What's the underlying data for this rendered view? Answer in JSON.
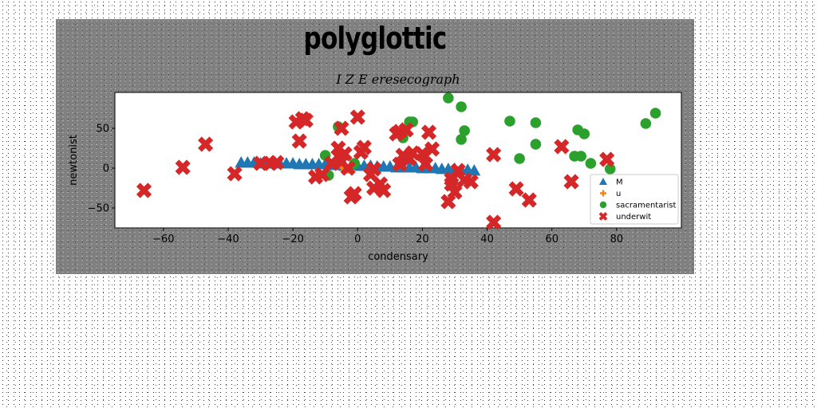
{
  "chart_data": {
    "type": "scatter",
    "suptitle": "polyglottic",
    "title": "I Z E eresecograph",
    "xlabel": "condensary",
    "ylabel": "newtonist",
    "xlim": [
      -75,
      100
    ],
    "ylim": [
      -75,
      95
    ],
    "xticks": [
      -60,
      -40,
      -20,
      0,
      20,
      40,
      60,
      80
    ],
    "yticks": [
      -50,
      0,
      50
    ],
    "grid": false,
    "legend_position": "bottom-right",
    "series": [
      {
        "name": "M",
        "marker": "triangle",
        "color": "#1f77b4",
        "x": [
          -36,
          -34,
          -32,
          -30,
          -28,
          -26,
          -24,
          -22,
          -20,
          -18,
          -16,
          -14,
          -12,
          -10,
          -8,
          -6,
          -4,
          -2,
          0,
          2,
          4,
          6,
          8,
          10,
          12,
          14,
          16,
          18,
          20,
          22,
          24,
          26,
          28,
          30,
          32,
          34,
          36
        ],
        "y": [
          7,
          7,
          7,
          6,
          6,
          6,
          6,
          6,
          6,
          5,
          5,
          5,
          5,
          5,
          4,
          4,
          3,
          3,
          3,
          3,
          3,
          2,
          2,
          2,
          1,
          1,
          1,
          1,
          0,
          0,
          0,
          -1,
          -1,
          -1,
          -2,
          -2,
          -3
        ]
      },
      {
        "name": "u",
        "marker": "plus",
        "color": "#ff7f0e",
        "x": [
          -5,
          -4,
          -3,
          -2
        ],
        "y": [
          1,
          -1,
          -2,
          -3
        ]
      },
      {
        "name": "sacramentarist",
        "marker": "circle",
        "color": "#2ca02c",
        "x": [
          28,
          32,
          33,
          32,
          16,
          17,
          14,
          -6,
          -10,
          -9,
          -1,
          47,
          55,
          55,
          50,
          68,
          70,
          69,
          72,
          67,
          78,
          89,
          92
        ],
        "y": [
          88,
          77,
          47,
          36,
          58,
          58,
          38,
          52,
          16,
          -9,
          6,
          59,
          57,
          30,
          12,
          48,
          43,
          15,
          6,
          15,
          -1,
          56,
          69
        ]
      },
      {
        "name": "underwit",
        "marker": "x",
        "color": "#d62728",
        "x": [
          -66,
          -54,
          -47,
          -38,
          -30,
          -27,
          -25,
          -19,
          -17,
          -16,
          -18,
          -13,
          -11,
          -6,
          -5,
          -5,
          -4,
          -6,
          -2,
          -8,
          -3,
          0,
          1,
          2,
          5,
          4,
          -1,
          5,
          7,
          8,
          12,
          13,
          15,
          14,
          13,
          17,
          16,
          20,
          21,
          22,
          23,
          29,
          29,
          30,
          28,
          31,
          33,
          35,
          42,
          42,
          49,
          53,
          63,
          66,
          77
        ],
        "y": [
          -28,
          1,
          30,
          -7,
          6,
          6,
          7,
          58,
          62,
          60,
          34,
          -11,
          -8,
          25,
          50,
          8,
          18,
          15,
          -36,
          6,
          0,
          64,
          20,
          26,
          -1,
          -8,
          -32,
          -25,
          -20,
          -28,
          43,
          46,
          48,
          16,
          5,
          19,
          12,
          18,
          5,
          45,
          24,
          -14,
          -20,
          -30,
          -42,
          -3,
          -15,
          -17,
          17,
          -68,
          -26,
          -40,
          27,
          -17,
          11
        ]
      }
    ]
  }
}
